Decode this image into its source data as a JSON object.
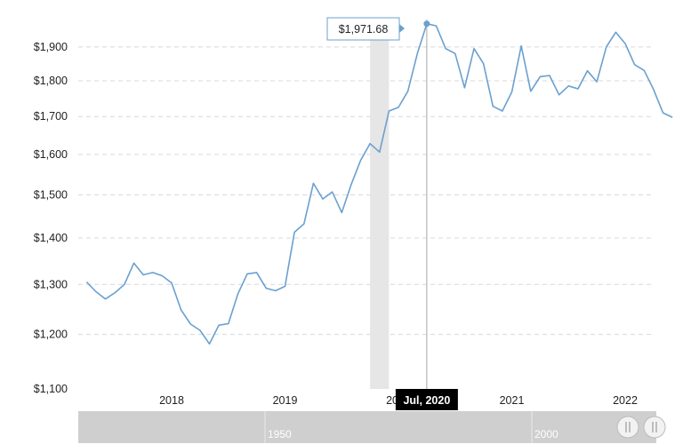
{
  "chart_data": {
    "type": "line",
    "title": "",
    "xlabel": "",
    "ylabel": "",
    "y_scale": "log",
    "ylim": [
      1100,
      1985
    ],
    "grid": true,
    "yticks": [
      "$1,100",
      "$1,200",
      "$1,300",
      "$1,400",
      "$1,500",
      "$1,600",
      "$1,700",
      "$1,800",
      "$1,900"
    ],
    "xticks": [
      "2018",
      "2019",
      "2020",
      "2021",
      "2022"
    ],
    "series": [
      {
        "name": "",
        "color": "#6aa0cf",
        "points": [
          [
            "2017-04",
            1305
          ],
          [
            "2017-05",
            1285
          ],
          [
            "2017-06",
            1270
          ],
          [
            "2017-07",
            1283
          ],
          [
            "2017-08",
            1300
          ],
          [
            "2017-09",
            1345
          ],
          [
            "2017-10",
            1320
          ],
          [
            "2017-11",
            1325
          ],
          [
            "2017-12",
            1318
          ],
          [
            "2018-01",
            1303
          ],
          [
            "2018-02",
            1248
          ],
          [
            "2018-03",
            1220
          ],
          [
            "2018-04",
            1208
          ],
          [
            "2018-05",
            1182
          ],
          [
            "2018-06",
            1218
          ],
          [
            "2018-07",
            1221
          ],
          [
            "2018-08",
            1280
          ],
          [
            "2018-09",
            1322
          ],
          [
            "2018-10",
            1325
          ],
          [
            "2018-11",
            1292
          ],
          [
            "2018-12",
            1287
          ],
          [
            "2019-01",
            1296
          ],
          [
            "2019-02",
            1413
          ],
          [
            "2019-03",
            1432
          ],
          [
            "2019-04",
            1528
          ],
          [
            "2019-05",
            1490
          ],
          [
            "2019-06",
            1507
          ],
          [
            "2019-07",
            1458
          ],
          [
            "2019-08",
            1525
          ],
          [
            "2019-09",
            1585
          ],
          [
            "2019-10",
            1628
          ],
          [
            "2019-11",
            1606
          ],
          [
            "2019-12",
            1715
          ],
          [
            "2020-01",
            1725
          ],
          [
            "2020-02",
            1770
          ],
          [
            "2020-03",
            1880
          ],
          [
            "2020-04",
            1971.68
          ],
          [
            "2020-05",
            1965
          ],
          [
            "2020-06",
            1895
          ],
          [
            "2020-07",
            1880
          ],
          [
            "2020-08",
            1780
          ],
          [
            "2020-09",
            1895
          ],
          [
            "2020-10",
            1850
          ],
          [
            "2020-11",
            1728
          ],
          [
            "2020-12",
            1715
          ],
          [
            "2021-01",
            1768
          ],
          [
            "2021-02",
            1903
          ],
          [
            "2021-03",
            1770
          ],
          [
            "2021-04",
            1812
          ],
          [
            "2021-05",
            1815
          ],
          [
            "2021-06",
            1760
          ],
          [
            "2021-07",
            1785
          ],
          [
            "2021-08",
            1777
          ],
          [
            "2021-09",
            1829
          ],
          [
            "2021-10",
            1797
          ],
          [
            "2021-11",
            1900
          ],
          [
            "2021-12",
            1945
          ],
          [
            "2022-01",
            1910
          ],
          [
            "2022-02",
            1847
          ],
          [
            "2022-03",
            1830
          ],
          [
            "2022-04",
            1775
          ],
          [
            "2022-05",
            1710
          ],
          [
            "2022-06",
            1698
          ]
        ]
      }
    ],
    "shaded_band": {
      "from": "2019-10",
      "to": "2019-12",
      "color": "#e6e6e6"
    },
    "tooltip": {
      "x": "2020-04",
      "value": 1971.68,
      "label": "$1,971.68"
    },
    "crosshair_label": "Jul, 2020",
    "navigator": {
      "labels": [
        "1950",
        "2000"
      ]
    }
  }
}
